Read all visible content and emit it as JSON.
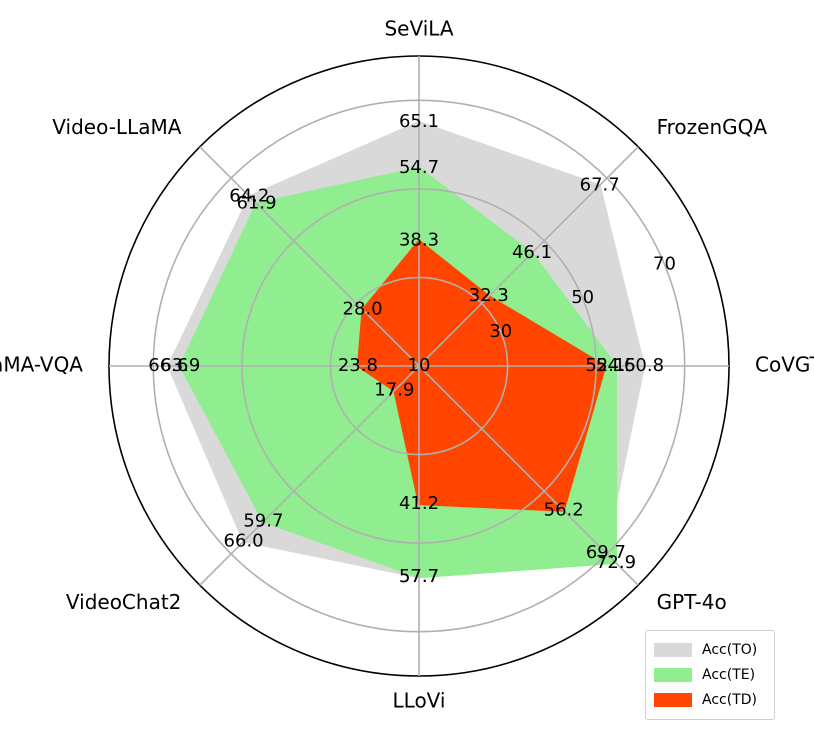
{
  "chart_data": {
    "type": "radar",
    "categories": [
      "CoVGT",
      "FrozenGQA",
      "SeViLA",
      "Video-LLaMA",
      "LLaMA-VQA",
      "VideoChat2",
      "LLoVi",
      "GPT-4o"
    ],
    "radial_ticks": [
      10,
      30,
      50,
      70
    ],
    "rlim": [
      10,
      80
    ],
    "grid": true,
    "legend_position": "lower-right",
    "series": [
      {
        "name": "Acc(TO)",
        "color": "#d9d9d9",
        "values": [
          60.8,
          67.7,
          65.1,
          64.2,
          66.6,
          66.0,
          57.7,
          69.7
        ]
      },
      {
        "name": "Acc(TE)",
        "color": "#90ee90",
        "values": [
          54.5,
          46.1,
          54.7,
          61.9,
          63.9,
          59.7,
          57.7,
          72.9
        ]
      },
      {
        "name": "Acc(TD)",
        "color": "#ff4500",
        "values": [
          52.1,
          32.3,
          38.3,
          28.0,
          23.8,
          17.9,
          41.2,
          56.2
        ]
      }
    ]
  }
}
